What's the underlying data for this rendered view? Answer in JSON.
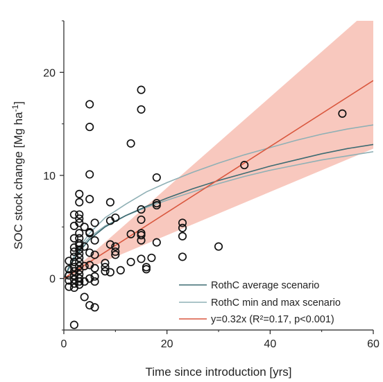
{
  "chart_data": {
    "type": "scatter",
    "xlabel": "Time since introduction [yrs]",
    "ylabel_main": "SOC stock change [Mg ha",
    "ylabel_sup": "-1",
    "ylabel_end": "]",
    "xlim": [
      0,
      60
    ],
    "ylim": [
      -5,
      25
    ],
    "xticks": [
      0,
      20,
      40,
      60
    ],
    "yticks": [
      0,
      10,
      20
    ],
    "grid": false,
    "legend_position": "bottom-right",
    "colors": {
      "points": "#111111",
      "avg_line": "#3d6b72",
      "minmax_line": "#8fb0b5",
      "regression_line": "#d9573e",
      "confidence_band": "#f5b5a8"
    },
    "legend": [
      {
        "label": "RothC average scenario",
        "series": "avg"
      },
      {
        "label": "RothC min and max scenario",
        "series": "minmax"
      },
      {
        "label": "y=0.32x (R²=0.17, p<0.001)",
        "series": "regression"
      }
    ],
    "regression": {
      "slope": 0.32,
      "ci_slope_low": 0.21,
      "ci_slope_high": 0.44
    },
    "rothc": {
      "average": {
        "x": [
          0,
          1,
          2,
          3,
          5,
          8,
          12,
          16,
          20,
          25,
          30,
          35,
          40,
          45,
          50,
          55,
          60
        ],
        "y": [
          0,
          1.0,
          1.9,
          2.6,
          3.8,
          5.0,
          6.1,
          7.0,
          7.8,
          8.7,
          9.5,
          10.2,
          10.9,
          11.5,
          12.1,
          12.6,
          13.0
        ]
      },
      "min": {
        "x": [
          0,
          1,
          2,
          3,
          5,
          8,
          12,
          16,
          20,
          25,
          30,
          35,
          40,
          45,
          50,
          55,
          60
        ],
        "y": [
          0,
          1.2,
          2.2,
          2.9,
          4.0,
          5.1,
          6.1,
          6.9,
          7.6,
          8.4,
          9.2,
          9.9,
          10.5,
          11.0,
          11.5,
          11.9,
          12.3
        ]
      },
      "max": {
        "x": [
          0,
          1,
          2,
          3,
          5,
          8,
          12,
          16,
          20,
          25,
          30,
          35,
          40,
          45,
          50,
          55,
          60
        ],
        "y": [
          0,
          1.1,
          2.1,
          3.0,
          4.4,
          5.9,
          7.2,
          8.4,
          9.3,
          10.3,
          11.2,
          12.0,
          12.7,
          13.4,
          14.0,
          14.5,
          14.9
        ]
      }
    },
    "points": [
      [
        54,
        16
      ],
      [
        35,
        11
      ],
      [
        30,
        3.1
      ],
      [
        23,
        5.4
      ],
      [
        23,
        4.9
      ],
      [
        23,
        4.1
      ],
      [
        23,
        2.1
      ],
      [
        18,
        9.8
      ],
      [
        18,
        7.3
      ],
      [
        18,
        7.1
      ],
      [
        18,
        3.5
      ],
      [
        17,
        2.0
      ],
      [
        16,
        1.1
      ],
      [
        16,
        0.9
      ],
      [
        15,
        18.3
      ],
      [
        15,
        16.4
      ],
      [
        15,
        6.7
      ],
      [
        15,
        5.7
      ],
      [
        15,
        4.4
      ],
      [
        15,
        4.2
      ],
      [
        15,
        3.7
      ],
      [
        15,
        1.9
      ],
      [
        13,
        13.1
      ],
      [
        13,
        4.3
      ],
      [
        13,
        1.6
      ],
      [
        11,
        0.8
      ],
      [
        10,
        5.9
      ],
      [
        10,
        3.1
      ],
      [
        10,
        2.6
      ],
      [
        10,
        2.3
      ],
      [
        9,
        7.4
      ],
      [
        9,
        5.6
      ],
      [
        9,
        3.3
      ],
      [
        9,
        0.6
      ],
      [
        8,
        1.5
      ],
      [
        8,
        1.1
      ],
      [
        8,
        0.7
      ],
      [
        6,
        5.4
      ],
      [
        6,
        3.7
      ],
      [
        6,
        2.3
      ],
      [
        6,
        1.0
      ],
      [
        6,
        0.2
      ],
      [
        6,
        -0.3
      ],
      [
        6,
        -2.8
      ],
      [
        5,
        16.9
      ],
      [
        5,
        14.7
      ],
      [
        5,
        10.1
      ],
      [
        5,
        7.7
      ],
      [
        5,
        4.5
      ],
      [
        5,
        4.4
      ],
      [
        5,
        2.5
      ],
      [
        5,
        1.3
      ],
      [
        5,
        0.0
      ],
      [
        5,
        -2.6
      ],
      [
        4,
        5.0
      ],
      [
        4,
        3.1
      ],
      [
        4,
        1.2
      ],
      [
        4,
        -0.3
      ],
      [
        4,
        -1.8
      ],
      [
        3,
        8.2
      ],
      [
        3,
        7.4
      ],
      [
        3,
        6.2
      ],
      [
        3,
        5.8
      ],
      [
        3,
        5.4
      ],
      [
        3,
        4.4
      ],
      [
        3,
        3.9
      ],
      [
        3,
        3.4
      ],
      [
        3,
        3.2
      ],
      [
        3,
        2.8
      ],
      [
        3,
        2.4
      ],
      [
        3,
        2.0
      ],
      [
        3,
        1.6
      ],
      [
        3,
        1.2
      ],
      [
        3,
        0.8
      ],
      [
        3,
        0.4
      ],
      [
        3,
        0.0
      ],
      [
        3,
        -0.3
      ],
      [
        3,
        -0.6
      ],
      [
        2,
        6.2
      ],
      [
        2,
        5.1
      ],
      [
        2,
        3.9
      ],
      [
        2,
        3.0
      ],
      [
        2,
        2.6
      ],
      [
        2,
        2.1
      ],
      [
        2,
        1.6
      ],
      [
        2,
        1.1
      ],
      [
        2,
        0.7
      ],
      [
        2,
        0.3
      ],
      [
        2,
        -0.1
      ],
      [
        2,
        -0.5
      ],
      [
        2,
        -0.9
      ],
      [
        2,
        -4.5
      ],
      [
        1,
        1.7
      ],
      [
        1,
        0.9
      ],
      [
        1,
        0.3
      ],
      [
        1,
        -0.2
      ],
      [
        1,
        -0.8
      ]
    ]
  }
}
